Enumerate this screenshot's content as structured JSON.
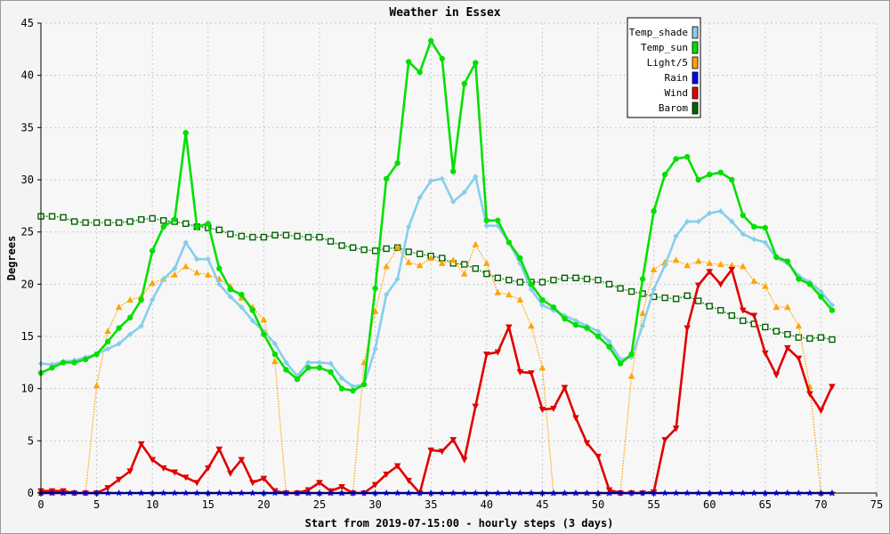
{
  "chart_data": {
    "type": "line",
    "title": "Weather in Essex",
    "xlabel": "Start from 2019-07-15:00 - hourly steps (3 days)",
    "ylabel": "Degrees",
    "xlim": [
      0,
      75
    ],
    "ylim": [
      0,
      45
    ],
    "xticks": [
      0,
      5,
      10,
      15,
      20,
      25,
      30,
      35,
      40,
      45,
      50,
      55,
      60,
      65,
      70,
      75
    ],
    "yticks": [
      0,
      5,
      10,
      15,
      20,
      25,
      30,
      35,
      40,
      45
    ],
    "grid": true,
    "legend_position": "top-right",
    "series": [
      {
        "name": "Temp_shade",
        "color": "#87ceeb",
        "marker": "diamond",
        "style": "solid",
        "values": [
          12.4,
          12.3,
          12.6,
          12.7,
          13.0,
          13.3,
          13.8,
          14.3,
          15.2,
          16.0,
          18.5,
          20.5,
          21.5,
          24.0,
          22.4,
          22.4,
          20.0,
          18.8,
          17.8,
          16.5,
          15.5,
          14.3,
          12.5,
          11.2,
          12.5,
          12.5,
          12.4,
          11.0,
          10.2,
          10.4,
          13.8,
          19.0,
          20.5,
          25.5,
          28.3,
          29.9,
          30.1,
          27.9,
          28.8,
          30.3,
          25.6,
          25.6,
          24.0,
          22.0,
          19.5,
          18.0,
          17.5,
          17.0,
          16.5,
          16.0,
          15.5,
          14.5,
          12.8,
          13.0,
          16.0,
          19.5,
          21.8,
          24.6,
          26.0,
          26.0,
          26.8,
          27.0,
          26.0,
          24.8,
          24.3,
          24.0,
          22.5,
          22.0,
          20.8,
          20.2,
          19.3,
          18.0
        ]
      },
      {
        "name": "Temp_sun",
        "color": "#00e000",
        "marker": "circle",
        "style": "solid",
        "values": [
          11.5,
          12.0,
          12.5,
          12.5,
          12.8,
          13.3,
          14.5,
          15.8,
          16.8,
          18.5,
          23.2,
          25.5,
          26.2,
          34.5,
          25.5,
          25.8,
          21.5,
          19.5,
          19.0,
          17.5,
          15.2,
          13.3,
          11.8,
          10.9,
          12.0,
          12.0,
          11.6,
          10.0,
          9.8,
          10.4,
          19.6,
          30.1,
          31.6,
          41.3,
          40.3,
          43.3,
          41.6,
          30.8,
          39.2,
          41.2,
          26.1,
          26.1,
          24.0,
          22.5,
          20.0,
          18.5,
          17.8,
          16.7,
          16.1,
          15.8,
          15.0,
          14.0,
          12.4,
          13.3,
          20.5,
          27.0,
          30.5,
          32.0,
          32.2,
          30.0,
          30.5,
          30.7,
          30.0,
          26.6,
          25.5,
          25.4,
          22.6,
          22.2,
          20.5,
          20.0,
          18.8,
          17.5
        ]
      },
      {
        "name": "Light/5",
        "color": "#ffa500",
        "marker": "triangle",
        "style": "dotted",
        "values": [
          0,
          0,
          0,
          0,
          0,
          10.3,
          15.5,
          17.8,
          18.5,
          18.8,
          20.1,
          20.5,
          20.9,
          21.7,
          21.1,
          20.9,
          20.5,
          19.8,
          18.7,
          17.8,
          16.6,
          12.6,
          0,
          0,
          0,
          0,
          0,
          0,
          0,
          12.5,
          17.4,
          21.7,
          23.5,
          22.1,
          21.8,
          22.5,
          22.0,
          22.3,
          21.0,
          23.8,
          22.0,
          19.2,
          19.0,
          18.5,
          16.0,
          12.0,
          0,
          0,
          0,
          0,
          0,
          0,
          0,
          11.2,
          17.2,
          21.4,
          22.1,
          22.3,
          21.8,
          22.2,
          22.0,
          21.9,
          21.8,
          21.7,
          20.3,
          19.8,
          17.8,
          17.8,
          16.0,
          10.2,
          0,
          0
        ]
      },
      {
        "name": "Rain",
        "color": "#0000ff",
        "marker": "star",
        "style": "solid",
        "values": [
          0,
          0,
          0,
          0,
          0,
          0,
          0,
          0,
          0,
          0,
          0,
          0,
          0,
          0,
          0,
          0,
          0,
          0,
          0,
          0,
          0,
          0,
          0,
          0,
          0,
          0,
          0,
          0,
          0,
          0,
          0,
          0,
          0,
          0,
          0,
          0,
          0,
          0,
          0,
          0,
          0,
          0,
          0,
          0,
          0,
          0,
          0,
          0,
          0,
          0,
          0,
          0,
          0,
          0,
          0,
          0,
          0,
          0,
          0,
          0,
          0,
          0,
          0,
          0,
          0,
          0,
          0,
          0,
          0,
          0,
          0,
          0
        ]
      },
      {
        "name": "Wind",
        "color": "#e00000",
        "marker": "triangle-down",
        "style": "solid",
        "values": [
          0.2,
          0.2,
          0.2,
          0,
          0,
          0,
          0.5,
          1.3,
          2.1,
          4.7,
          3.2,
          2.4,
          2.0,
          1.5,
          1.0,
          2.4,
          4.2,
          1.9,
          3.2,
          1.0,
          1.4,
          0.2,
          0,
          0,
          0.3,
          1.0,
          0.2,
          0.6,
          0,
          0,
          0.8,
          1.8,
          2.6,
          1.2,
          0,
          4.1,
          4.0,
          5.1,
          3.2,
          8.3,
          13.3,
          13.5,
          15.9,
          11.6,
          11.5,
          8.0,
          8.1,
          10.1,
          7.2,
          4.8,
          3.5,
          0.3,
          0,
          0,
          0,
          0.1,
          5.1,
          6.2,
          15.8,
          19.9,
          21.2,
          20.0,
          21.4,
          17.5,
          17.0,
          13.4,
          11.3,
          13.9,
          12.9,
          9.5,
          7.9,
          10.2
        ]
      },
      {
        "name": "Barom",
        "color": "#006400",
        "marker": "square",
        "style": "dotted",
        "values": [
          26.5,
          26.5,
          26.4,
          26.0,
          25.9,
          25.9,
          25.9,
          25.9,
          26.0,
          26.2,
          26.3,
          26.1,
          26.0,
          25.8,
          25.5,
          25.4,
          25.2,
          24.8,
          24.6,
          24.5,
          24.5,
          24.7,
          24.7,
          24.6,
          24.5,
          24.5,
          24.1,
          23.7,
          23.5,
          23.3,
          23.2,
          23.4,
          23.5,
          23.1,
          22.9,
          22.7,
          22.5,
          22.0,
          21.9,
          21.5,
          21.0,
          20.6,
          20.4,
          20.2,
          20.2,
          20.2,
          20.4,
          20.6,
          20.6,
          20.5,
          20.4,
          20.0,
          19.6,
          19.3,
          19.1,
          18.8,
          18.7,
          18.6,
          18.9,
          18.4,
          17.9,
          17.5,
          17.0,
          16.5,
          16.2,
          15.9,
          15.5,
          15.2,
          14.9,
          14.8,
          14.9,
          14.7
        ]
      }
    ]
  }
}
